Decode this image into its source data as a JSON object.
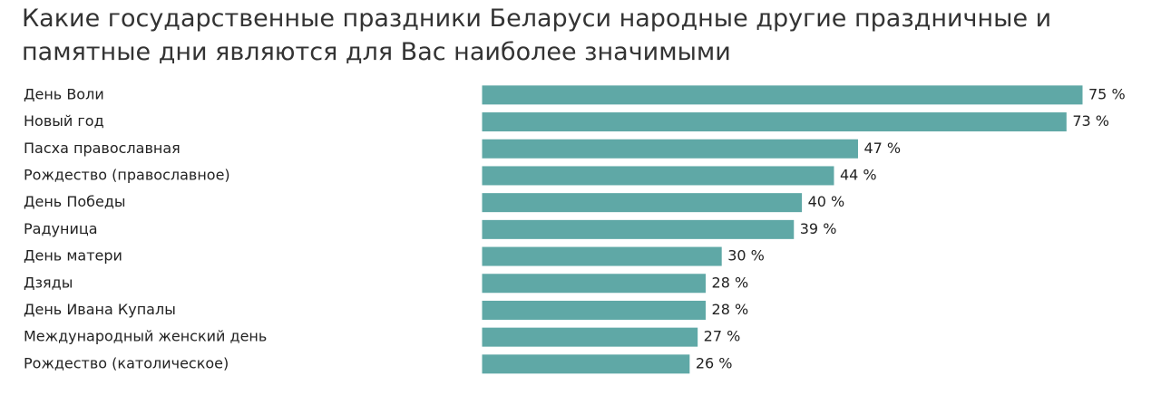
{
  "chart_data": {
    "type": "bar",
    "orientation": "horizontal",
    "title": "Какие государственные праздники Беларуси народные другие праздничные и памятные дни являются для Вас наиболее значимыми",
    "categories": [
      "День Воли",
      "Новый год",
      "Пасха православная",
      "Рождество (православное)",
      "День Победы",
      "Радуница",
      "День матери",
      "Дзяды",
      "День Ивана Купалы",
      "Международный женский день",
      "Рождество (католическое)"
    ],
    "values": [
      75,
      73,
      47,
      44,
      40,
      39,
      30,
      28,
      28,
      27,
      26
    ],
    "value_suffix": " %",
    "xlim": [
      0,
      75
    ],
    "grid": false,
    "legend": "none",
    "colors": {
      "bar": "#5fa8a6",
      "bar_border": "#ffffff",
      "text": "#222222",
      "title": "#333333"
    }
  }
}
